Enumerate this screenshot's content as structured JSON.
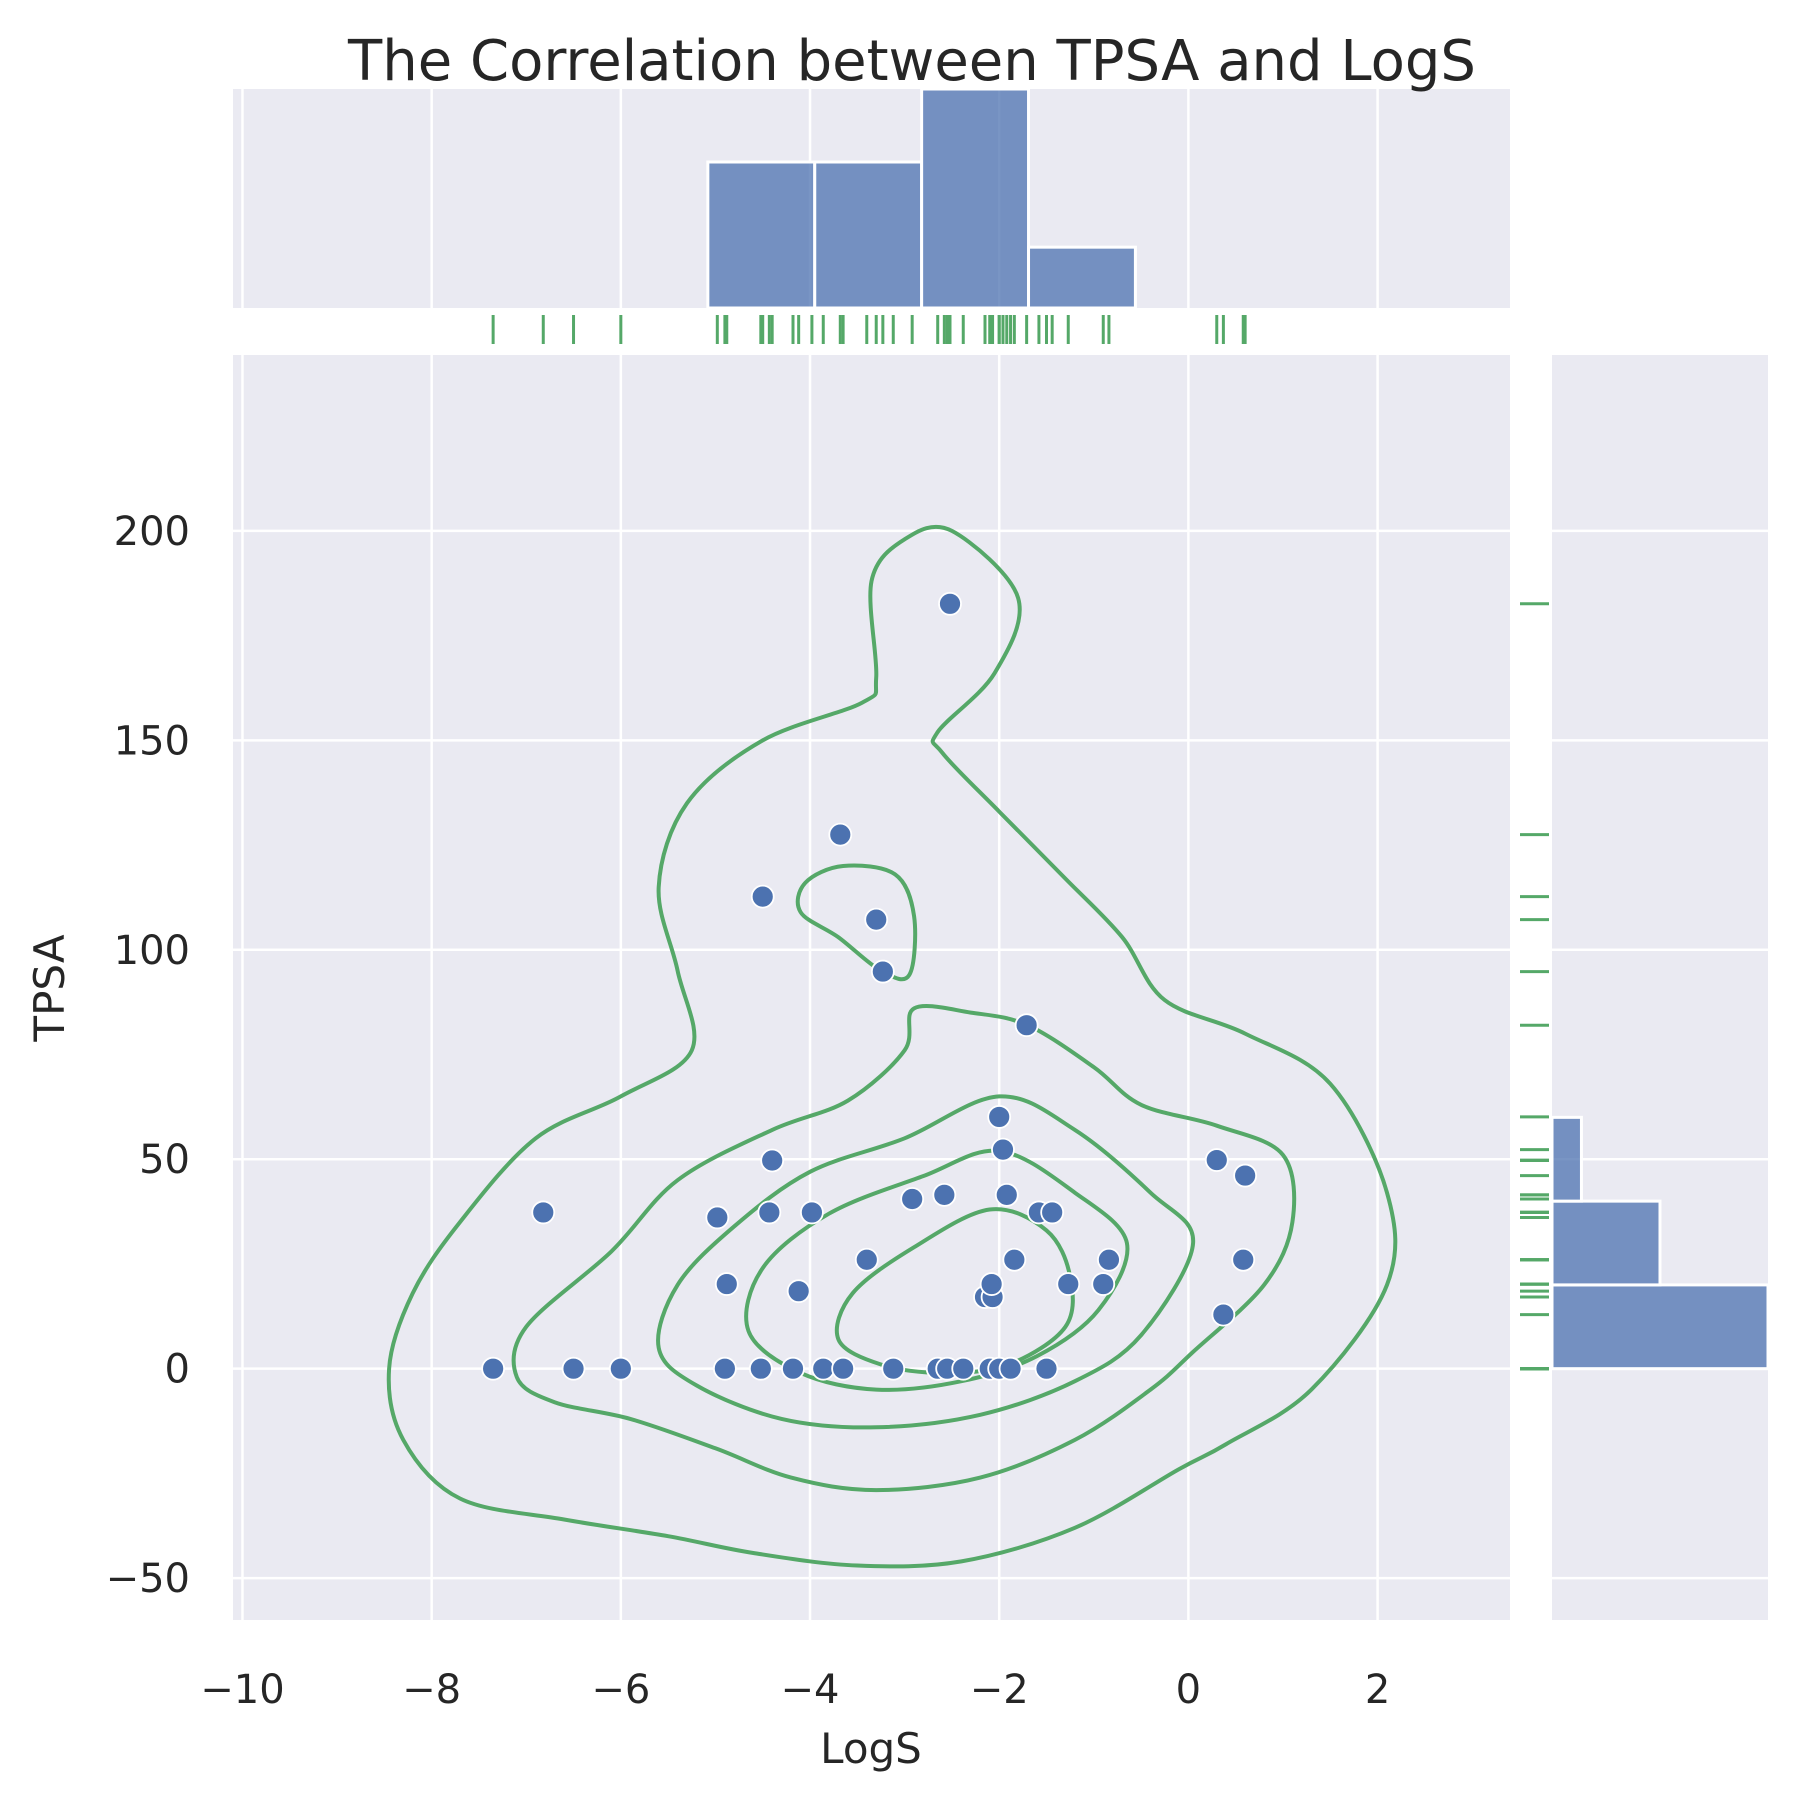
{
  "chart_data": {
    "type": "scatter",
    "title": "The Correlation between TPSA and LogS",
    "xlabel": "LogS",
    "ylabel": "TPSA",
    "xlim": [
      -10.1,
      3.4
    ],
    "ylim": [
      -60,
      242
    ],
    "xticks": [
      -10,
      -8,
      -6,
      -4,
      -2,
      0,
      2
    ],
    "xtick_labels": [
      "−10",
      "−8",
      "−6",
      "−4",
      "−2",
      "0",
      "2"
    ],
    "yticks": [
      -50,
      0,
      50,
      100,
      150,
      200
    ],
    "ytick_labels": [
      "−50",
      "0",
      "50",
      "100",
      "150",
      "200"
    ],
    "grid": true,
    "colors": {
      "points": "#4c72b0",
      "kde": "#55a868",
      "rug": "#55a868",
      "hist": "#4c72b0",
      "background": "#eaeaf2"
    },
    "points": [
      {
        "x": -7.35,
        "y": 0
      },
      {
        "x": -6.5,
        "y": 0
      },
      {
        "x": -6.0,
        "y": 0
      },
      {
        "x": -4.9,
        "y": 0
      },
      {
        "x": -4.52,
        "y": 0
      },
      {
        "x": -4.18,
        "y": 0
      },
      {
        "x": -3.86,
        "y": 0
      },
      {
        "x": -3.65,
        "y": 0
      },
      {
        "x": -3.12,
        "y": 0
      },
      {
        "x": -2.65,
        "y": 0
      },
      {
        "x": -2.55,
        "y": 0
      },
      {
        "x": -2.38,
        "y": 0
      },
      {
        "x": -2.1,
        "y": 0
      },
      {
        "x": -2.0,
        "y": 0
      },
      {
        "x": -1.88,
        "y": 0
      },
      {
        "x": -1.5,
        "y": 0
      },
      {
        "x": -6.82,
        "y": 37.3
      },
      {
        "x": -4.98,
        "y": 36.1
      },
      {
        "x": -4.43,
        "y": 37.3
      },
      {
        "x": -3.98,
        "y": 37.3
      },
      {
        "x": -2.92,
        "y": 40.5
      },
      {
        "x": -2.58,
        "y": 41.5
      },
      {
        "x": -1.92,
        "y": 41.5
      },
      {
        "x": -1.58,
        "y": 37.3
      },
      {
        "x": -1.44,
        "y": 37.3
      },
      {
        "x": -4.88,
        "y": 20.2
      },
      {
        "x": -4.12,
        "y": 18.5
      },
      {
        "x": -3.4,
        "y": 26.0
      },
      {
        "x": -2.15,
        "y": 17.1
      },
      {
        "x": -2.07,
        "y": 17.1
      },
      {
        "x": -2.08,
        "y": 20.2
      },
      {
        "x": -1.84,
        "y": 26.0
      },
      {
        "x": -1.27,
        "y": 20.2
      },
      {
        "x": -0.9,
        "y": 20.2
      },
      {
        "x": -0.84,
        "y": 26.0
      },
      {
        "x": 0.58,
        "y": 26.0
      },
      {
        "x": 0.37,
        "y": 12.9
      },
      {
        "x": 0.3,
        "y": 49.8
      },
      {
        "x": 0.6,
        "y": 46.1
      },
      {
        "x": -4.4,
        "y": 49.7
      },
      {
        "x": -1.96,
        "y": 52.3
      },
      {
        "x": -2.0,
        "y": 60.1
      },
      {
        "x": -1.71,
        "y": 82.0
      },
      {
        "x": -3.23,
        "y": 94.8
      },
      {
        "x": -3.3,
        "y": 107.2
      },
      {
        "x": -4.5,
        "y": 112.7
      },
      {
        "x": -3.68,
        "y": 127.5
      },
      {
        "x": -2.52,
        "y": 182.6
      }
    ],
    "histogram_x": {
      "bin_edges": [
        -5.08,
        -3.95,
        -2.82,
        -1.69,
        -0.56
      ],
      "counts": [
        12,
        12,
        18,
        5
      ]
    },
    "histogram_y": {
      "bin_edges": [
        0,
        20,
        40,
        60
      ],
      "counts": [
        22,
        11,
        3
      ]
    },
    "kde_contours": [
      [
        [
          -2.5,
          200
        ],
        [
          -1.8,
          184
        ],
        [
          -2.05,
          166
        ],
        [
          -2.65,
          152
        ],
        [
          -2.6,
          147
        ],
        [
          -2.0,
          133
        ],
        [
          -1.3,
          117
        ],
        [
          -0.7,
          103
        ],
        [
          -0.25,
          88
        ],
        [
          0.6,
          80
        ],
        [
          1.5,
          68
        ],
        [
          2.1,
          42
        ],
        [
          2.1,
          20
        ],
        [
          1.3,
          -5
        ],
        [
          0.4,
          -18
        ],
        [
          -0.1,
          -24
        ],
        [
          -1.2,
          -38
        ],
        [
          -2.4,
          -46
        ],
        [
          -3.5,
          -47
        ],
        [
          -4.6,
          -44
        ],
        [
          -5.5,
          -40
        ],
        [
          -6.6,
          -36
        ],
        [
          -7.7,
          -31
        ],
        [
          -8.3,
          -17
        ],
        [
          -8.45,
          0
        ],
        [
          -8.2,
          18
        ],
        [
          -7.7,
          35
        ],
        [
          -6.9,
          55
        ],
        [
          -6.0,
          65
        ],
        [
          -5.25,
          76
        ],
        [
          -5.4,
          95
        ],
        [
          -5.6,
          115
        ],
        [
          -5.3,
          135
        ],
        [
          -4.5,
          150
        ],
        [
          -3.45,
          159
        ],
        [
          -3.3,
          165
        ],
        [
          -3.35,
          188
        ],
        [
          -3.0,
          198
        ]
      ],
      [
        [
          -2.9,
          86
        ],
        [
          -2.3,
          85
        ],
        [
          -1.7,
          82
        ],
        [
          -1.0,
          72
        ],
        [
          -0.5,
          63
        ],
        [
          0.3,
          58
        ],
        [
          1.0,
          51
        ],
        [
          1.1,
          35
        ],
        [
          0.8,
          20
        ],
        [
          0.05,
          4
        ],
        [
          -0.4,
          -5
        ],
        [
          -1.2,
          -17
        ],
        [
          -2.2,
          -26
        ],
        [
          -3.3,
          -29
        ],
        [
          -4.2,
          -26
        ],
        [
          -5.0,
          -19
        ],
        [
          -5.9,
          -12
        ],
        [
          -6.7,
          -8
        ],
        [
          -7.1,
          -2
        ],
        [
          -7.0,
          10
        ],
        [
          -6.1,
          28
        ],
        [
          -5.4,
          45
        ],
        [
          -4.4,
          57
        ],
        [
          -3.6,
          64
        ],
        [
          -3.0,
          76
        ]
      ],
      [
        [
          -2.0,
          65
        ],
        [
          -1.2,
          57
        ],
        [
          -0.4,
          42
        ],
        [
          0.05,
          30
        ],
        [
          -0.5,
          8
        ],
        [
          -1.2,
          -3
        ],
        [
          -2.2,
          -11
        ],
        [
          -3.3,
          -14
        ],
        [
          -4.3,
          -12
        ],
        [
          -5.2,
          -4
        ],
        [
          -5.6,
          5
        ],
        [
          -5.4,
          20
        ],
        [
          -4.8,
          34
        ],
        [
          -4.0,
          47
        ],
        [
          -3.0,
          55
        ]
      ],
      [
        [
          -2.0,
          52
        ],
        [
          -1.2,
          42
        ],
        [
          -0.65,
          30
        ],
        [
          -0.95,
          14
        ],
        [
          -1.6,
          3
        ],
        [
          -2.4,
          -3
        ],
        [
          -3.3,
          -5
        ],
        [
          -4.1,
          -1
        ],
        [
          -4.65,
          9
        ],
        [
          -4.5,
          24
        ],
        [
          -3.8,
          37
        ],
        [
          -2.8,
          46
        ]
      ],
      [
        [
          -2.1,
          38
        ],
        [
          -1.5,
          33
        ],
        [
          -1.25,
          22
        ],
        [
          -1.3,
          10
        ],
        [
          -1.9,
          1
        ],
        [
          -2.6,
          -1
        ],
        [
          -3.25,
          1
        ],
        [
          -3.7,
          7
        ],
        [
          -3.55,
          18
        ],
        [
          -2.9,
          29
        ]
      ],
      [
        [
          -3.65,
          120
        ],
        [
          -3.1,
          118
        ],
        [
          -2.9,
          108
        ],
        [
          -2.95,
          94
        ],
        [
          -3.25,
          95
        ],
        [
          -3.7,
          103
        ],
        [
          -4.1,
          109
        ],
        [
          -4.05,
          116
        ]
      ]
    ]
  }
}
